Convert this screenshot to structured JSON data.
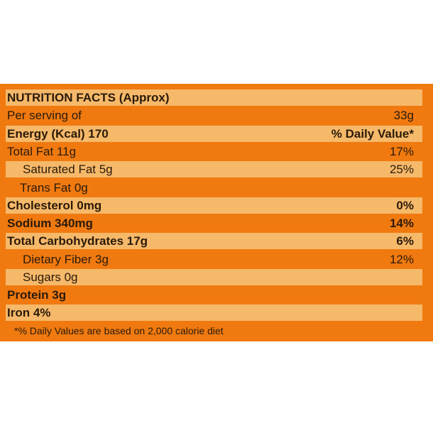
{
  "label": {
    "rows": [
      {
        "label": "NUTRITION FACTS (Approx)",
        "value": ""
      },
      {
        "label": "Per serving of",
        "value": "33g"
      },
      {
        "label": "Energy (Kcal) 170",
        "value": "% Daily Value*"
      },
      {
        "label": "Total Fat 11g",
        "value": "17%"
      },
      {
        "label": "Saturated Fat 5g",
        "value": "25%"
      },
      {
        "label": "Trans Fat 0g",
        "value": ""
      },
      {
        "label": "Cholesterol 0mg",
        "value": "0%"
      },
      {
        "label": "Sodium 340mg",
        "value": "14%"
      },
      {
        "label": "Total Carbohydrates 17g",
        "value": "6%"
      },
      {
        "label": "Dietary Fiber 3g",
        "value": "12%"
      },
      {
        "label": "Sugars 0g",
        "value": ""
      },
      {
        "label": "Protein 3g",
        "value": ""
      },
      {
        "label": "Iron 4%",
        "value": ""
      }
    ],
    "footnote": "*% Daily Values are based on 2,000 calorie diet"
  },
  "colors": {
    "background": "#f07a10",
    "stripe": "#f6b96a",
    "text": "#2a1a0a"
  }
}
